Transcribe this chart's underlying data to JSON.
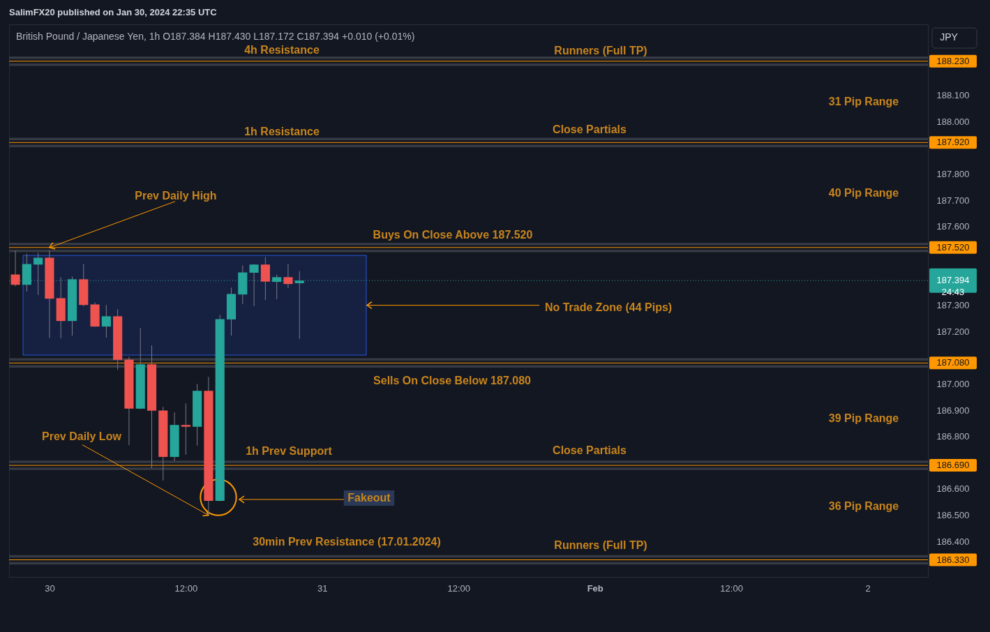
{
  "chart_data": {
    "type": "candlestick",
    "title": "SalimFX20 published on Jan 30, 2024 22:35 UTC",
    "subtitle": "British Pound / Japanese Yen, 1h  O187.384  H187.430  L187.172  C187.394  +0.010 (+0.01%)",
    "ylabel": "JPY",
    "x": [
      "2024-01-29T21:00",
      "2024-01-29T22:00",
      "2024-01-29T23:00",
      "2024-01-30T00:00",
      "2024-01-30T01:00",
      "2024-01-30T02:00",
      "2024-01-30T03:00",
      "2024-01-30T04:00",
      "2024-01-30T05:00",
      "2024-01-30T06:00",
      "2024-01-30T07:00",
      "2024-01-30T08:00",
      "2024-01-30T09:00",
      "2024-01-30T10:00",
      "2024-01-30T11:00",
      "2024-01-30T12:00",
      "2024-01-30T13:00",
      "2024-01-30T14:00",
      "2024-01-30T15:00",
      "2024-01-30T16:00",
      "2024-01-30T17:00",
      "2024-01-30T18:00",
      "2024-01-30T19:00",
      "2024-01-30T20:00",
      "2024-01-30T21:00",
      "2024-01-30T22:00"
    ],
    "ohlc": [
      [
        187.417,
        187.508,
        187.372,
        187.378
      ],
      [
        187.378,
        187.496,
        187.352,
        187.457
      ],
      [
        187.455,
        187.5,
        187.339,
        187.481
      ],
      [
        187.481,
        187.508,
        187.176,
        187.325
      ],
      [
        187.327,
        187.407,
        187.174,
        187.24
      ],
      [
        187.24,
        187.409,
        187.184,
        187.399
      ],
      [
        187.399,
        187.457,
        187.296,
        187.301
      ],
      [
        187.303,
        187.311,
        187.217,
        187.219
      ],
      [
        187.219,
        187.301,
        187.177,
        187.258
      ],
      [
        187.258,
        187.285,
        187.054,
        187.092
      ],
      [
        187.093,
        187.104,
        186.767,
        186.906
      ],
      [
        186.906,
        187.213,
        186.904,
        187.075
      ],
      [
        187.075,
        187.147,
        186.679,
        186.898
      ],
      [
        186.899,
        186.913,
        186.632,
        186.722
      ],
      [
        186.722,
        186.892,
        186.706,
        186.844
      ],
      [
        186.844,
        186.926,
        186.73,
        186.837
      ],
      [
        186.837,
        187.0,
        186.765,
        186.974
      ],
      [
        186.974,
        187.027,
        186.5,
        186.555
      ],
      [
        186.555,
        187.263,
        186.553,
        187.247
      ],
      [
        187.246,
        187.367,
        187.184,
        187.343
      ],
      [
        187.341,
        187.452,
        187.304,
        187.425
      ],
      [
        187.424,
        187.457,
        187.296,
        187.455
      ],
      [
        187.455,
        187.484,
        187.32,
        187.39
      ],
      [
        187.389,
        187.417,
        187.323,
        187.407
      ],
      [
        187.407,
        187.457,
        187.365,
        187.381
      ],
      [
        187.384,
        187.43,
        187.172,
        187.394
      ]
    ],
    "colors": [
      "#ef5350",
      "#26a69a",
      "#26a69a",
      "#ef5350",
      "#ef5350",
      "#26a69a",
      "#ef5350",
      "#ef5350",
      "#26a69a",
      "#ef5350",
      "#ef5350",
      "#26a69a",
      "#ef5350",
      "#ef5350",
      "#26a69a",
      "#ef5350",
      "#26a69a",
      "#ef5350",
      "#26a69a",
      "#26a69a",
      "#26a69a",
      "#26a69a",
      "#ef5350",
      "#26a69a",
      "#ef5350",
      "#26a69a"
    ],
    "xlim": [
      "2024-01-29T20:45",
      "2024-02-02T05:00"
    ],
    "ylim": [
      186.265,
      188.37
    ],
    "xticks": [
      {
        "value": "2024-01-30",
        "label": "30"
      },
      {
        "value": "2024-01-30T12:00",
        "label": "12:00"
      },
      {
        "value": "2024-01-31",
        "label": "31"
      },
      {
        "value": "2024-01-31T12:00",
        "label": "12:00"
      },
      {
        "value": "2024-02-01",
        "label": "Feb"
      },
      {
        "value": "2024-02-01T12:00",
        "label": "12:00"
      },
      {
        "value": "2024-02-02",
        "label": "2"
      }
    ],
    "yticks": [
      {
        "value": 186.4,
        "label": "186.400"
      },
      {
        "value": 186.5,
        "label": "186.500"
      },
      {
        "value": 186.6,
        "label": "186.600"
      },
      {
        "value": 186.8,
        "label": "186.800"
      },
      {
        "value": 186.9,
        "label": "186.900"
      },
      {
        "value": 187.0,
        "label": "187.000"
      },
      {
        "value": 187.2,
        "label": "187.200"
      },
      {
        "value": 187.3,
        "label": "187.300"
      },
      {
        "value": 187.6,
        "label": "187.600"
      },
      {
        "value": 187.7,
        "label": "187.700"
      },
      {
        "value": 187.8,
        "label": "187.800"
      },
      {
        "value": 188.0,
        "label": "188.000"
      },
      {
        "value": 188.1,
        "label": "188.100"
      }
    ],
    "ref_lines": [
      {
        "axis": "y",
        "value": 188.23,
        "label": "188.230",
        "color": "#ff9800"
      },
      {
        "axis": "y",
        "value": 187.92,
        "label": "187.920",
        "color": "#ff9800"
      },
      {
        "axis": "y",
        "value": 187.52,
        "label": "187.520",
        "color": "#ff9800"
      },
      {
        "axis": "y",
        "value": 187.08,
        "label": "187.080",
        "color": "#ff9800"
      },
      {
        "axis": "y",
        "value": 186.69,
        "label": "186.690",
        "color": "#ff9800"
      },
      {
        "axis": "y",
        "value": 186.33,
        "label": "186.330",
        "color": "#ff9800"
      },
      {
        "axis": "y",
        "value": 187.394,
        "label": "187.394\n24:43",
        "color": "#26a69a",
        "line_style": "dotted"
      }
    ],
    "bands": [
      {
        "axis": "y",
        "from": 187.11,
        "to": 187.49,
        "label": "No Trade Zone (44 Pips)",
        "color": "#2962ff"
      }
    ],
    "annotations": [
      "4h Resistance",
      "Runners (Full TP)",
      "31 Pip Range",
      "1h Resistance",
      "Close Partials",
      "40 Pip Range",
      {
        "text": "Prev Daily High",
        "x": "2024-01-30T00:00",
        "y": 187.52
      },
      "Buys On Close Above 187.520",
      "Sells On Close Below 187.080",
      "39 Pip Range",
      {
        "text": "Prev Daily Low",
        "x": "2024-01-30T14:00",
        "y": 186.5
      },
      "1h Prev Support",
      "Close Partials",
      "Fakeout",
      "36 Pip Range",
      "30min Prev Resistance (17.01.2024)",
      "Runners (Full TP)"
    ]
  }
}
